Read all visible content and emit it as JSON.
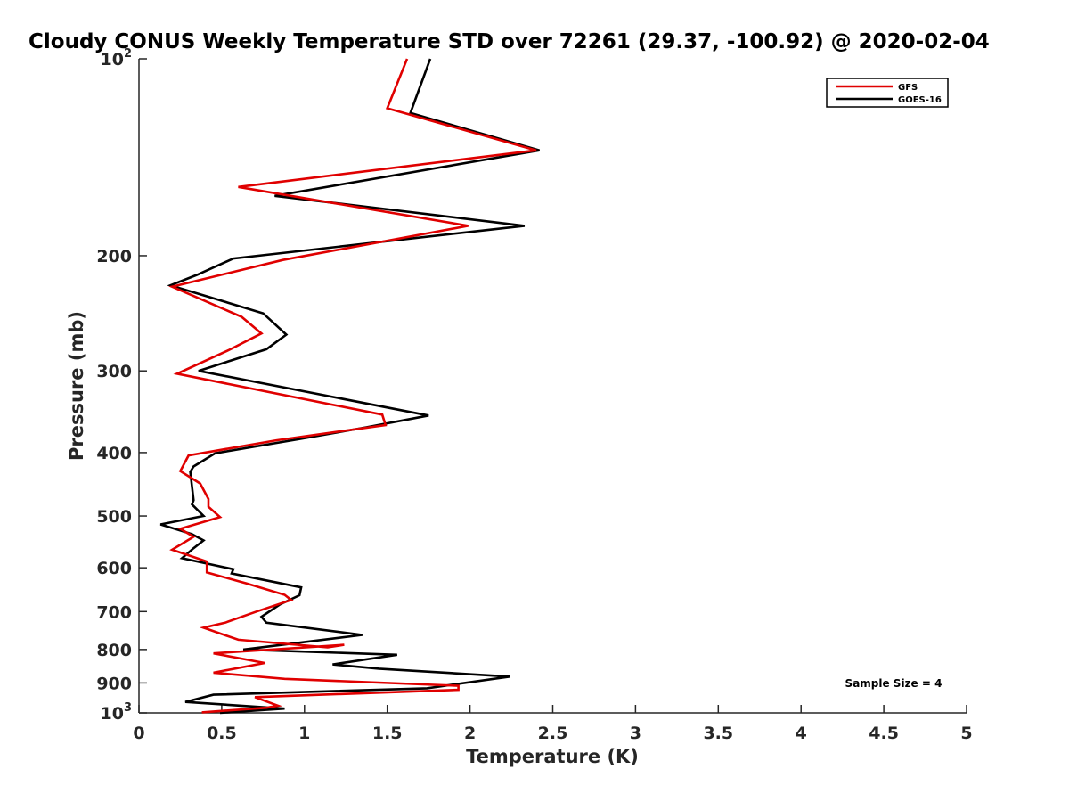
{
  "chart_data": {
    "type": "line",
    "title": "Cloudy CONUS Weekly Temperature STD over 72261 (29.37, -100.92) @ 2020-02-04",
    "xlabel": "Temperature (K)",
    "ylabel": "Pressure (mb)",
    "xlim": [
      0,
      5
    ],
    "ylim": [
      100,
      1000
    ],
    "y_scale": "log",
    "y_reversed": true,
    "xticks": [
      "0",
      "0.5",
      "1",
      "1.5",
      "2",
      "2.5",
      "3",
      "3.5",
      "4",
      "4.5",
      "5"
    ],
    "xtick_values": [
      0,
      0.5,
      1,
      1.5,
      2,
      2.5,
      3,
      3.5,
      4,
      4.5,
      5
    ],
    "yticks": [
      {
        "value": 100,
        "label": "10",
        "sup": "2"
      },
      {
        "value": 200,
        "label": "200"
      },
      {
        "value": 300,
        "label": "300"
      },
      {
        "value": 400,
        "label": "400"
      },
      {
        "value": 500,
        "label": "500"
      },
      {
        "value": 600,
        "label": "600"
      },
      {
        "value": 700,
        "label": "700"
      },
      {
        "value": 800,
        "label": "800"
      },
      {
        "value": 900,
        "label": "900"
      },
      {
        "value": 1000,
        "label": "10",
        "sup": "3"
      }
    ],
    "grid": false,
    "legend_position": "top-right",
    "annotation": "Sample Size = 4",
    "series": [
      {
        "name": "GFS",
        "color": "#e00000",
        "points": [
          [
            1.62,
            100
          ],
          [
            1.5,
            119
          ],
          [
            2.4,
            138
          ],
          [
            0.6,
            157
          ],
          [
            1.99,
            180
          ],
          [
            0.87,
            203
          ],
          [
            0.2,
            223
          ],
          [
            0.62,
            248
          ],
          [
            0.74,
            263
          ],
          [
            0.54,
            279
          ],
          [
            0.23,
            303
          ],
          [
            1.47,
            350
          ],
          [
            1.49,
            363
          ],
          [
            0.83,
            383
          ],
          [
            0.3,
            404
          ],
          [
            0.25,
            427
          ],
          [
            0.37,
            446
          ],
          [
            0.42,
            471
          ],
          [
            0.42,
            484
          ],
          [
            0.49,
            502
          ],
          [
            0.25,
            523
          ],
          [
            0.33,
            538
          ],
          [
            0.2,
            563
          ],
          [
            0.41,
            587
          ],
          [
            0.41,
            610
          ],
          [
            0.65,
            634
          ],
          [
            0.88,
            660
          ],
          [
            0.92,
            672
          ],
          [
            0.71,
            700
          ],
          [
            0.52,
            728
          ],
          [
            0.39,
            741
          ],
          [
            0.6,
            773
          ],
          [
            1.14,
            794
          ],
          [
            1.24,
            787
          ],
          [
            0.45,
            811
          ],
          [
            0.76,
            839
          ],
          [
            0.45,
            868
          ],
          [
            0.88,
            887
          ],
          [
            1.93,
            909
          ],
          [
            1.93,
            922
          ],
          [
            0.7,
            946
          ],
          [
            0.84,
            975
          ],
          [
            0.77,
            982
          ],
          [
            0.38,
            998
          ]
        ]
      },
      {
        "name": "GOES-16",
        "color": "#000000",
        "points": [
          [
            1.76,
            100
          ],
          [
            1.64,
            121
          ],
          [
            2.42,
            138
          ],
          [
            0.82,
            162
          ],
          [
            2.33,
            180
          ],
          [
            0.57,
            202
          ],
          [
            0.35,
            214
          ],
          [
            0.19,
            222
          ],
          [
            0.75,
            245
          ],
          [
            0.89,
            264
          ],
          [
            0.77,
            278
          ],
          [
            0.36,
            300
          ],
          [
            1.75,
            351
          ],
          [
            1.37,
            366
          ],
          [
            0.98,
            381
          ],
          [
            0.46,
            401
          ],
          [
            0.33,
            420
          ],
          [
            0.31,
            428
          ],
          [
            0.33,
            473
          ],
          [
            0.32,
            480
          ],
          [
            0.39,
            500
          ],
          [
            0.13,
            515
          ],
          [
            0.32,
            533
          ],
          [
            0.39,
            545
          ],
          [
            0.33,
            560
          ],
          [
            0.26,
            580
          ],
          [
            0.57,
            603
          ],
          [
            0.56,
            612
          ],
          [
            0.98,
            643
          ],
          [
            0.97,
            661
          ],
          [
            0.85,
            683
          ],
          [
            0.74,
            713
          ],
          [
            0.77,
            728
          ],
          [
            1.35,
            760
          ],
          [
            0.63,
            800
          ],
          [
            1.56,
            815
          ],
          [
            1.17,
            843
          ],
          [
            1.45,
            856
          ],
          [
            2.24,
            880
          ],
          [
            1.74,
            917
          ],
          [
            0.45,
            938
          ],
          [
            0.28,
            962
          ],
          [
            0.88,
            985
          ],
          [
            0.49,
            1000
          ]
        ]
      }
    ]
  }
}
